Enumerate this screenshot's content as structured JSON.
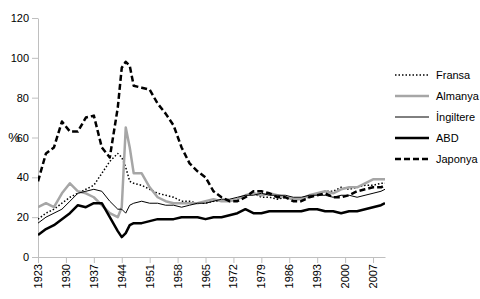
{
  "chart_data": {
    "type": "line",
    "y_label": "%",
    "x": [
      1923,
      1925,
      1927,
      1929,
      1931,
      1933,
      1935,
      1937,
      1939,
      1941,
      1943,
      1944,
      1945,
      1946,
      1947,
      1949,
      1951,
      1953,
      1955,
      1957,
      1959,
      1961,
      1963,
      1965,
      1967,
      1969,
      1971,
      1973,
      1975,
      1977,
      1979,
      1981,
      1983,
      1985,
      1987,
      1989,
      1991,
      1993,
      1995,
      1997,
      1999,
      2001,
      2003,
      2005,
      2007,
      2009,
      2010
    ],
    "xlim": [
      1923,
      2010
    ],
    "xticks": [
      1923,
      1930,
      1937,
      1944,
      1951,
      1958,
      1965,
      1972,
      1979,
      1986,
      1993,
      2000,
      2007
    ],
    "ylim": [
      0,
      120
    ],
    "yticks": [
      0,
      20,
      40,
      60,
      80,
      100,
      120
    ],
    "grid": false,
    "legend": "right",
    "series": [
      {
        "name": "Fransa",
        "color": "#000000",
        "line_style": "dotted",
        "values": [
          19,
          22,
          24,
          27,
          30,
          32,
          34,
          36,
          42,
          48,
          52,
          50,
          45,
          38,
          37,
          36,
          34,
          32,
          31,
          30,
          28,
          28,
          27,
          27,
          28,
          28,
          28,
          29,
          31,
          32,
          30,
          30,
          29,
          30,
          29,
          29,
          30,
          32,
          33,
          33,
          35,
          34,
          35,
          36,
          36,
          37,
          37
        ]
      },
      {
        "name": "Almanya",
        "color": "#a6a6a6",
        "line_style": "solid",
        "values": [
          25,
          27,
          25,
          32,
          37,
          33,
          32,
          30,
          26,
          22,
          20,
          25,
          65,
          55,
          42,
          42,
          35,
          30,
          28,
          27,
          27,
          27,
          27,
          28,
          29,
          28,
          28,
          29,
          31,
          32,
          31,
          32,
          31,
          30,
          29,
          29,
          31,
          32,
          33,
          32,
          34,
          35,
          35,
          37,
          39,
          39,
          39
        ]
      },
      {
        "name": "İngiltere",
        "color": "#000000",
        "line_style": "solid",
        "values": [
          17,
          20,
          22,
          24,
          28,
          32,
          33,
          34,
          33,
          28,
          24,
          24,
          22,
          26,
          27,
          28,
          27,
          27,
          26,
          26,
          25,
          26,
          27,
          27,
          28,
          29,
          29,
          30,
          31,
          31,
          32,
          31,
          31,
          31,
          30,
          30,
          31,
          31,
          31,
          30,
          31,
          31,
          30,
          31,
          32,
          33,
          34
        ]
      },
      {
        "name": "ABD",
        "color": "#000000",
        "line_style": "solid",
        "values": [
          11,
          14,
          16,
          19,
          22,
          26,
          25,
          27,
          27,
          20,
          13,
          10,
          12,
          16,
          17,
          17,
          18,
          19,
          19,
          19,
          20,
          20,
          20,
          19,
          20,
          20,
          21,
          22,
          24,
          22,
          22,
          23,
          23,
          23,
          23,
          23,
          24,
          24,
          23,
          23,
          22,
          23,
          23,
          24,
          25,
          26,
          27
        ]
      },
      {
        "name": "Japonya",
        "color": "#000000",
        "line_style": "dashed",
        "values": [
          38,
          52,
          55,
          68,
          63,
          63,
          70,
          71,
          55,
          50,
          75,
          95,
          98,
          96,
          86,
          85,
          84,
          77,
          72,
          66,
          55,
          47,
          43,
          40,
          33,
          30,
          28,
          28,
          30,
          33,
          33,
          32,
          30,
          30,
          28,
          28,
          30,
          31,
          32,
          30,
          30,
          31,
          33,
          34,
          35,
          35,
          36
        ]
      }
    ]
  }
}
